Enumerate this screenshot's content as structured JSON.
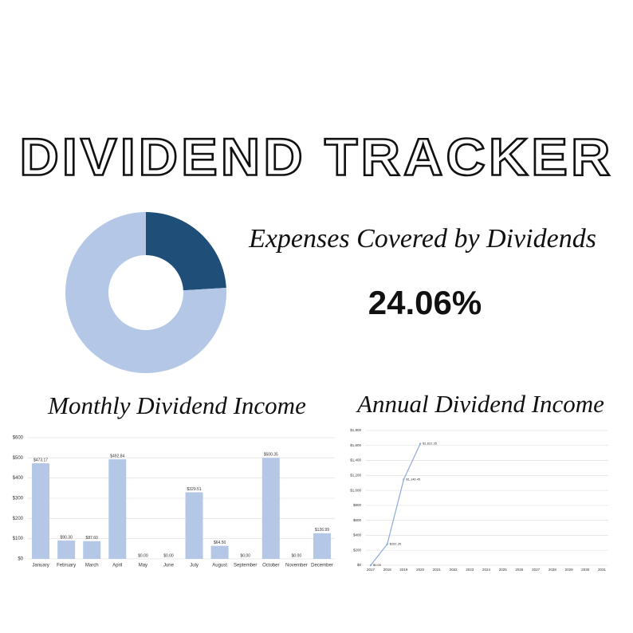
{
  "header": {
    "title": "DIVIDEND TRACKER"
  },
  "chart_data": [
    {
      "type": "pie",
      "title": "Expenses Covered by Dividends",
      "values": [
        24.06,
        75.94
      ],
      "value_label": "24.06%",
      "colors": [
        "#1f4e79",
        "#b4c7e7"
      ]
    },
    {
      "type": "bar",
      "title": "Monthly Dividend Income",
      "categories": [
        "January",
        "February",
        "March",
        "April",
        "May",
        "June",
        "July",
        "August",
        "September",
        "October",
        "November",
        "December"
      ],
      "values": [
        473.17,
        90.3,
        87.6,
        492.84,
        0,
        0,
        329.51,
        64.5,
        0,
        500.35,
        0,
        126.99
      ],
      "value_labels": [
        "$473.17",
        "$90.30",
        "$87.60",
        "$492.84",
        "$0.00",
        "$0.00",
        "$329.51",
        "$64.50",
        "$0.00",
        "$500.35",
        "$0.00",
        "$126.99"
      ],
      "color": "#b4c7e7",
      "ylim": [
        0,
        600
      ],
      "yticks": [
        {
          "value": 0,
          "label": "$0"
        },
        {
          "value": 100,
          "label": "$100"
        },
        {
          "value": 200,
          "label": "$200"
        },
        {
          "value": 300,
          "label": "$300"
        },
        {
          "value": 400,
          "label": "$400"
        },
        {
          "value": 500,
          "label": "$500"
        },
        {
          "value": 600,
          "label": "$600"
        }
      ],
      "grid": true
    },
    {
      "type": "line",
      "title": "Annual Dividend Income",
      "categories": [
        "2017",
        "2018",
        "2019",
        "2020",
        "2021",
        "2022",
        "2023",
        "2024",
        "2025",
        "2026",
        "2027",
        "2028",
        "2029",
        "2030",
        "2031"
      ],
      "values": [
        0,
        281.35,
        1146.45,
        1622.35,
        null,
        null,
        null,
        null,
        null,
        null,
        null,
        null,
        null,
        null,
        null
      ],
      "value_labels": [
        "$0.00",
        "$281.35",
        "$1,146.45",
        "$1,622.35",
        null,
        null,
        null,
        null,
        null,
        null,
        null,
        null,
        null,
        null,
        null
      ],
      "color": "#8eaadb",
      "ylim": [
        0,
        1800
      ],
      "yticks": [
        {
          "value": 0,
          "label": "$0"
        },
        {
          "value": 200,
          "label": "$200"
        },
        {
          "value": 400,
          "label": "$400"
        },
        {
          "value": 600,
          "label": "$600"
        },
        {
          "value": 800,
          "label": "$800"
        },
        {
          "value": 1000,
          "label": "$1,000"
        },
        {
          "value": 1200,
          "label": "$1,200"
        },
        {
          "value": 1400,
          "label": "$1,400"
        },
        {
          "value": 1600,
          "label": "$1,600"
        },
        {
          "value": 1800,
          "label": "$1,800"
        }
      ],
      "grid": true
    }
  ]
}
